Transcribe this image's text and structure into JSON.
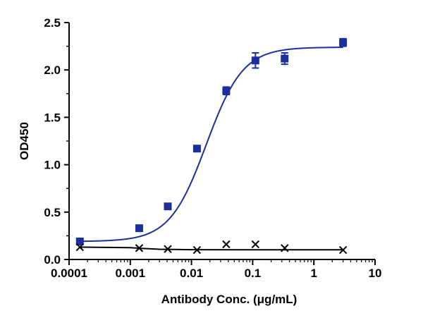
{
  "chart_data": {
    "type": "scatter",
    "title": "",
    "xlabel": "Antibody Conc. (μg/mL)",
    "ylabel": "OD450",
    "xscale": "log",
    "xlim": [
      0.0001,
      10
    ],
    "ylim": [
      0,
      2.5
    ],
    "x_ticks": [
      0.0001,
      0.001,
      0.01,
      0.1,
      1,
      10
    ],
    "x_tick_labels": [
      "0.0001",
      "0.001",
      "0.01",
      "0.1",
      "1",
      "10"
    ],
    "y_ticks": [
      0,
      0.5,
      1.0,
      1.5,
      2.0,
      2.5
    ],
    "y_tick_labels": [
      "0.0",
      "0.5",
      "1.0",
      "1.5",
      "2.0",
      "2.5"
    ],
    "grid": false,
    "legend": "none",
    "series": [
      {
        "marker": "square",
        "color": "#1c2f9c",
        "x": [
          0.00015,
          0.0014,
          0.0041,
          0.0123,
          0.037,
          0.111,
          0.333,
          3.0
        ],
        "y": [
          0.19,
          0.33,
          0.56,
          1.17,
          1.78,
          2.1,
          2.12,
          2.29
        ],
        "error": [
          0.01,
          0.01,
          0.03,
          0.01,
          0.04,
          0.08,
          0.06,
          0.04
        ],
        "fit": {
          "bottom": 0.19,
          "top": 2.24,
          "ec50": 0.0175,
          "hill": 1.45
        }
      },
      {
        "marker": "x",
        "color": "#000000",
        "x": [
          0.00015,
          0.0014,
          0.0041,
          0.0123,
          0.037,
          0.111,
          0.333,
          3.0
        ],
        "y": [
          0.13,
          0.12,
          0.11,
          0.1,
          0.16,
          0.16,
          0.12,
          0.1
        ],
        "error": [
          0,
          0,
          0,
          0,
          0,
          0,
          0,
          0
        ],
        "fit_points": [
          [
            0.00015,
            0.13
          ],
          [
            0.001,
            0.125
          ],
          [
            0.0015,
            0.117
          ],
          [
            0.003,
            0.108
          ],
          [
            0.01,
            0.103
          ],
          [
            0.1,
            0.102
          ],
          [
            3.0,
            0.102
          ]
        ]
      }
    ]
  }
}
